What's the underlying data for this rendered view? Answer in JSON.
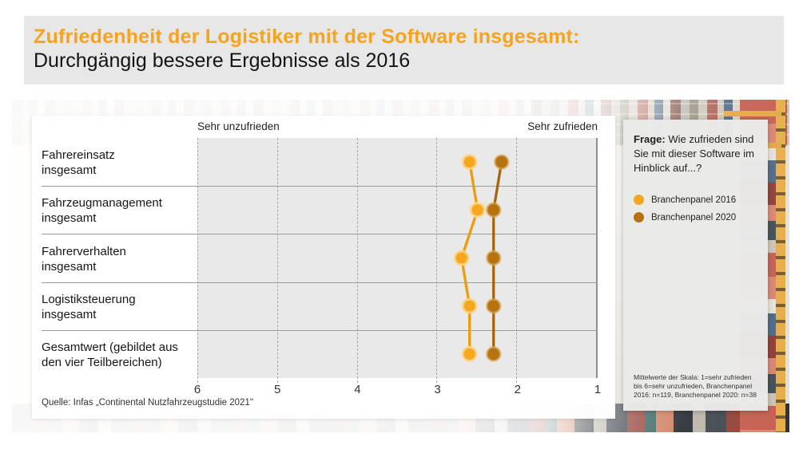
{
  "header": {
    "title": "Zufriedenheit der Logistiker mit der Software insgesamt:",
    "subtitle": "Durchgängig bessere Ergebnisse als 2016"
  },
  "chart_data": {
    "type": "scatter",
    "variant": "connected-dot-plot",
    "categories": [
      "Fahrereinsatz\ninsgesamt",
      "Fahrzeugmanagement\ninsgesamt",
      "Fahrerverhalten\ninsgesamt",
      "Logistiksteuerung\ninsgesamt",
      "Gesamtwert (gebildet aus\nden vier Teilbereichen)"
    ],
    "series": [
      {
        "name": "Branchenpanel 2016",
        "color": "#F5A71D",
        "line_color": "#ED9C0F",
        "halo": "rgba(250,214,140,0.85)",
        "values": [
          2.6,
          2.5,
          2.7,
          2.6,
          2.6
        ]
      },
      {
        "name": "Branchenpanel 2020",
        "color": "#B5720F",
        "line_color": "#A3660C",
        "halo": "rgba(216,176,104,0.55)",
        "values": [
          2.2,
          2.3,
          2.3,
          2.3,
          2.3
        ]
      }
    ],
    "axis": {
      "ticks": [
        6,
        5,
        4,
        3,
        2,
        1
      ],
      "min": 1,
      "max": 6,
      "reversed": true,
      "label_left": "Sehr unzufrieden",
      "label_right": "Sehr zufrieden"
    },
    "grid": "vertical-dashed"
  },
  "source": "Quelle: Infas „Continental Nutzfahrzeugstudie 2021\"",
  "info_panel": {
    "question_label": "Frage:",
    "question_text": "Wie zufrieden sind Sie mit dieser Software im Hinblick auf...?",
    "legend": [
      {
        "label": "Branchenpanel 2016",
        "color": "#F5A71D"
      },
      {
        "label": "Branchenpanel 2020",
        "color": "#B5720F"
      }
    ],
    "note": "Mittelwerte der Skala: 1=sehr zufrieden bis 6=sehr unzufrieden, Branchenpanel 2016: n=119, Branchenpanel 2020: n=38"
  }
}
